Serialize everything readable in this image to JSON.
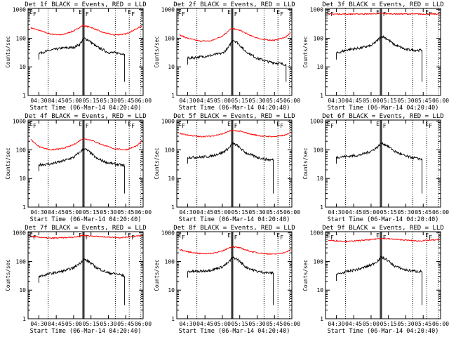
{
  "colors": {
    "events": "#000000",
    "lld": "#ff0000",
    "axes": "#000000",
    "background": "#ffffff"
  },
  "chart_data": [
    {
      "type": "line",
      "title": "Det 1f BLACK = Events, RED = LLD",
      "xlabel": "Start Time (06-Mar-14 04:20:40)",
      "ylabel": "Counts/sec",
      "yscale": "log",
      "ylim": [
        1,
        1100
      ],
      "xlim": [
        "04:20:40",
        "06:00:00"
      ],
      "xticks": [
        "04:30",
        "04:45",
        "05:00",
        "05:15",
        "05:30",
        "05:45",
        "06:00"
      ],
      "yticks": [
        "1",
        "10",
        "100",
        "1000"
      ],
      "markers": {
        "labels": [
          "E",
          "F",
          "E",
          "F",
          "E",
          "F"
        ],
        "solid": [
          "05:08",
          "05:09"
        ],
        "dotted": [
          "04:38",
          "05:36",
          "05:48",
          "05:58"
        ]
      },
      "series": [
        {
          "color": "red",
          "x": [
            "04:23",
            "04:30",
            "04:40",
            "04:50",
            "05:00",
            "05:08",
            "05:15",
            "05:25",
            "05:35",
            "05:45",
            "05:55",
            "05:59"
          ],
          "values": [
            230,
            190,
            140,
            130,
            180,
            280,
            240,
            160,
            130,
            140,
            220,
            270
          ]
        },
        {
          "color": "black",
          "x": [
            "04:30",
            "04:40",
            "04:50",
            "05:00",
            "05:05",
            "05:09",
            "05:13",
            "05:20",
            "05:30",
            "05:40",
            "05:44"
          ],
          "values": [
            30,
            38,
            45,
            48,
            60,
            100,
            85,
            50,
            32,
            30,
            28
          ]
        }
      ]
    },
    {
      "type": "line",
      "title": "Det 2f BLACK = Events, RED = LLD",
      "xlabel": "Start Time (06-Mar-14 04:20:40)",
      "ylabel": "Counts/sec",
      "yscale": "log",
      "ylim": [
        1,
        1100
      ],
      "xlim": [
        "04:20:40",
        "06:00:00"
      ],
      "xticks": [
        "04:30",
        "04:45",
        "05:00",
        "05:15",
        "05:30",
        "05:45",
        "06:00"
      ],
      "yticks": [
        "1",
        "10",
        "100",
        "1000"
      ],
      "markers": {
        "labels": [
          "E",
          "F",
          "E",
          "F",
          "E",
          "F"
        ],
        "solid": [
          "05:08",
          "05:09"
        ],
        "dotted": [
          "04:38",
          "05:36",
          "05:48",
          "05:58"
        ]
      },
      "series": [
        {
          "color": "red",
          "x": [
            "04:23",
            "04:30",
            "04:40",
            "04:50",
            "05:00",
            "05:08",
            "05:15",
            "05:25",
            "05:35",
            "05:45",
            "05:55",
            "05:59"
          ],
          "values": [
            130,
            100,
            80,
            80,
            120,
            220,
            190,
            120,
            90,
            85,
            110,
            160
          ]
        },
        {
          "color": "black",
          "x": [
            "04:30",
            "04:40",
            "04:50",
            "05:00",
            "05:05",
            "05:09",
            "05:13",
            "05:20",
            "05:30",
            "05:40",
            "05:55"
          ],
          "values": [
            20,
            22,
            25,
            30,
            45,
            90,
            70,
            35,
            20,
            15,
            12
          ]
        }
      ]
    },
    {
      "type": "line",
      "title": "Det 3f BLACK = Events, RED = LLD",
      "xlabel": "Start Time (06-Mar-14 04:20:40)",
      "ylabel": "Counts/sec",
      "yscale": "log",
      "ylim": [
        1,
        1100
      ],
      "xlim": [
        "04:20:40",
        "06:00:00"
      ],
      "xticks": [
        "04:30",
        "04:45",
        "05:00",
        "05:15",
        "05:30",
        "05:45",
        "06:00"
      ],
      "yticks": [
        "1",
        "10",
        "100",
        "1000"
      ],
      "markers": {
        "labels": [
          "E",
          "F",
          "E",
          "F",
          "E",
          "F"
        ],
        "solid": [
          "05:08",
          "05:09"
        ],
        "dotted": [
          "04:38",
          "05:36",
          "05:48",
          "05:58"
        ]
      },
      "series": [
        {
          "color": "red",
          "x": [
            "04:23",
            "04:40",
            "05:00",
            "05:08",
            "05:20",
            "05:40",
            "05:59"
          ],
          "values": [
            700,
            700,
            710,
            730,
            710,
            700,
            700
          ]
        },
        {
          "color": "black",
          "x": [
            "04:30",
            "04:40",
            "04:50",
            "05:00",
            "05:05",
            "05:09",
            "05:13",
            "05:20",
            "05:30",
            "05:40",
            "05:44"
          ],
          "values": [
            30,
            40,
            45,
            55,
            80,
            120,
            100,
            60,
            40,
            38,
            38
          ]
        }
      ]
    },
    {
      "type": "line",
      "title": "Det 4f BLACK = Events, RED = LLD",
      "xlabel": "Start Time (06-Mar-14 04:20:40)",
      "ylabel": "Counts/sec",
      "yscale": "log",
      "ylim": [
        1,
        1100
      ],
      "xlim": [
        "04:20:40",
        "06:00:00"
      ],
      "xticks": [
        "04:30",
        "04:45",
        "05:00",
        "05:15",
        "05:30",
        "05:45",
        "06:00"
      ],
      "yticks": [
        "1",
        "10",
        "100",
        "1000"
      ],
      "markers": {
        "labels": [
          "E",
          "F",
          "E",
          "F",
          "E",
          "F"
        ],
        "solid": [
          "05:08",
          "05:09"
        ],
        "dotted": [
          "04:38",
          "05:36",
          "05:48",
          "05:58"
        ]
      },
      "series": [
        {
          "color": "red",
          "x": [
            "04:23",
            "04:30",
            "04:40",
            "04:50",
            "05:00",
            "05:08",
            "05:15",
            "05:25",
            "05:35",
            "05:45",
            "05:55",
            "05:59"
          ],
          "values": [
            230,
            130,
            100,
            110,
            150,
            250,
            220,
            150,
            110,
            100,
            140,
            210
          ]
        },
        {
          "color": "black",
          "x": [
            "04:30",
            "04:40",
            "04:50",
            "05:00",
            "05:05",
            "05:09",
            "05:13",
            "05:20",
            "05:30",
            "05:40",
            "05:44"
          ],
          "values": [
            30,
            32,
            40,
            55,
            80,
            110,
            90,
            50,
            35,
            30,
            28
          ]
        }
      ]
    },
    {
      "type": "line",
      "title": "Det 5f BLACK = Events, RED = LLD",
      "xlabel": "Start Time (06-Mar-14 04:20:40)",
      "ylabel": "Counts/sec",
      "yscale": "log",
      "ylim": [
        1,
        1100
      ],
      "xlim": [
        "04:20:40",
        "06:00:00"
      ],
      "xticks": [
        "04:30",
        "04:45",
        "05:00",
        "05:15",
        "05:30",
        "05:45",
        "06:00"
      ],
      "yticks": [
        "1",
        "10",
        "100",
        "1000"
      ],
      "markers": {
        "labels": [
          "E",
          "F",
          "E",
          "F",
          "E",
          "F"
        ],
        "solid": [
          "05:08",
          "05:09"
        ],
        "dotted": [
          "04:38",
          "05:36",
          "05:48",
          "05:58"
        ]
      },
      "series": [
        {
          "color": "red",
          "x": [
            "04:23",
            "04:30",
            "04:40",
            "04:50",
            "05:00",
            "05:08",
            "05:15",
            "05:25",
            "05:35",
            "05:45",
            "05:55",
            "05:59"
          ],
          "values": [
            380,
            330,
            290,
            300,
            360,
            480,
            450,
            350,
            300,
            290,
            330,
            420
          ]
        },
        {
          "color": "black",
          "x": [
            "04:30",
            "04:40",
            "04:50",
            "05:00",
            "05:05",
            "05:09",
            "05:13",
            "05:20",
            "05:30",
            "05:40",
            "05:44"
          ],
          "values": [
            55,
            55,
            60,
            80,
            110,
            170,
            140,
            80,
            55,
            45,
            45
          ]
        }
      ]
    },
    {
      "type": "line",
      "title": "Det 6f BLACK = Events, RED = LLD",
      "xlabel": "Start Time (06-Mar-14 04:20:40)",
      "ylabel": "Counts/sec",
      "yscale": "log",
      "ylim": [
        1,
        1100
      ],
      "xlim": [
        "04:20:40",
        "06:00:00"
      ],
      "xticks": [
        "04:30",
        "04:45",
        "05:00",
        "05:15",
        "05:30",
        "05:45",
        "06:00"
      ],
      "yticks": [
        "1",
        "10",
        "100",
        "1000"
      ],
      "markers": {
        "labels": [
          "E",
          "F",
          "E",
          "F",
          "E",
          "F"
        ],
        "solid": [
          "05:08",
          "05:09"
        ],
        "dotted": [
          "04:38",
          "05:36",
          "05:48",
          "05:58"
        ]
      },
      "series": [
        {
          "color": "black",
          "x": [
            "04:30",
            "04:40",
            "04:50",
            "05:00",
            "05:05",
            "05:09",
            "05:13",
            "05:20",
            "05:30",
            "05:40",
            "05:44"
          ],
          "values": [
            55,
            60,
            65,
            90,
            120,
            170,
            150,
            90,
            60,
            50,
            48
          ]
        }
      ]
    },
    {
      "type": "line",
      "title": "Det 7f BLACK = Events, RED = LLD",
      "xlabel": "Start Time (06-Mar-14 04:20:40)",
      "ylabel": "Counts/sec",
      "yscale": "log",
      "ylim": [
        1,
        1100
      ],
      "xlim": [
        "04:20:40",
        "06:00:00"
      ],
      "xticks": [
        "04:30",
        "04:45",
        "05:00",
        "05:15",
        "05:30",
        "05:45",
        "06:00"
      ],
      "yticks": [
        "1",
        "10",
        "100",
        "1000"
      ],
      "markers": {
        "labels": [
          "E",
          "F",
          "E",
          "F",
          "E",
          "F"
        ],
        "solid": [
          "05:08",
          "05:09"
        ],
        "dotted": [
          "04:38",
          "05:36",
          "05:48",
          "05:58"
        ]
      },
      "series": [
        {
          "color": "red",
          "x": [
            "04:23",
            "04:40",
            "05:00",
            "05:08",
            "05:20",
            "05:40",
            "05:59"
          ],
          "values": [
            750,
            650,
            700,
            820,
            750,
            680,
            800
          ]
        },
        {
          "color": "black",
          "x": [
            "04:30",
            "04:40",
            "04:50",
            "05:00",
            "05:05",
            "05:09",
            "05:13",
            "05:20",
            "05:30",
            "05:40",
            "05:44"
          ],
          "values": [
            30,
            38,
            45,
            60,
            85,
            120,
            100,
            60,
            40,
            35,
            30
          ]
        }
      ]
    },
    {
      "type": "line",
      "title": "Det 8f BLACK = Events, RED = LLD",
      "xlabel": "Start Time (06-Mar-14 04:20:40)",
      "ylabel": "Counts/sec",
      "yscale": "log",
      "ylim": [
        1,
        1100
      ],
      "xlim": [
        "04:20:40",
        "06:00:00"
      ],
      "xticks": [
        "04:30",
        "04:45",
        "05:00",
        "05:15",
        "05:30",
        "05:45",
        "06:00"
      ],
      "yticks": [
        "1",
        "10",
        "100",
        "1000"
      ],
      "markers": {
        "labels": [
          "E",
          "F",
          "E",
          "F",
          "E",
          "F"
        ],
        "solid": [
          "05:08",
          "05:09"
        ],
        "dotted": [
          "04:38",
          "05:36",
          "05:48",
          "05:58"
        ]
      },
      "series": [
        {
          "color": "red",
          "x": [
            "04:23",
            "04:30",
            "04:40",
            "04:50",
            "05:00",
            "05:08",
            "05:15",
            "05:25",
            "05:35",
            "05:45",
            "05:55",
            "05:59"
          ],
          "values": [
            260,
            220,
            190,
            190,
            230,
            330,
            300,
            220,
            190,
            180,
            210,
            260
          ]
        },
        {
          "color": "black",
          "x": [
            "04:30",
            "04:40",
            "04:50",
            "05:00",
            "05:05",
            "05:09",
            "05:13",
            "05:20",
            "05:30",
            "05:40",
            "05:44"
          ],
          "values": [
            45,
            45,
            50,
            65,
            90,
            140,
            120,
            65,
            45,
            40,
            40
          ]
        }
      ]
    },
    {
      "type": "line",
      "title": "Det 9f BLACK = Events, RED = LLD",
      "xlabel": "Start Time (06-Mar-14 04:20:40)",
      "ylabel": "Counts/sec",
      "yscale": "log",
      "ylim": [
        1,
        1100
      ],
      "xlim": [
        "04:20:40",
        "06:00:00"
      ],
      "xticks": [
        "04:30",
        "04:45",
        "05:00",
        "05:15",
        "05:30",
        "05:45",
        "06:00"
      ],
      "yticks": [
        "1",
        "10",
        "100",
        "1000"
      ],
      "markers": {
        "labels": [
          "E",
          "F",
          "E",
          "F",
          "E",
          "F"
        ],
        "solid": [
          "05:08",
          "05:09"
        ],
        "dotted": [
          "04:38",
          "05:36",
          "05:48",
          "05:58"
        ]
      },
      "series": [
        {
          "color": "red",
          "x": [
            "04:23",
            "04:40",
            "05:00",
            "05:08",
            "05:20",
            "05:40",
            "05:59"
          ],
          "values": [
            550,
            500,
            580,
            650,
            600,
            520,
            580
          ]
        },
        {
          "color": "black",
          "x": [
            "04:30",
            "04:40",
            "04:50",
            "05:00",
            "05:05",
            "05:09",
            "05:13",
            "05:20",
            "05:30",
            "05:40",
            "05:44"
          ],
          "values": [
            35,
            45,
            55,
            75,
            100,
            140,
            120,
            70,
            50,
            45,
            45
          ]
        }
      ]
    }
  ]
}
